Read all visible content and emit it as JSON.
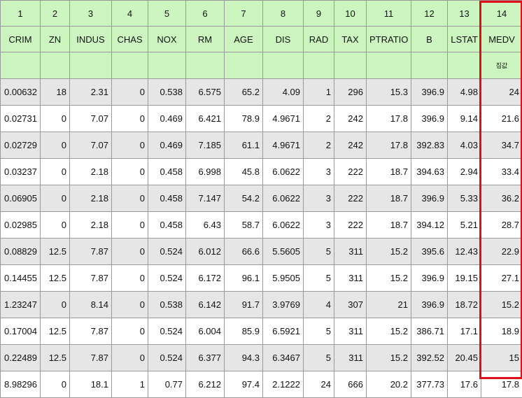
{
  "columns": {
    "numbers": [
      "1",
      "2",
      "3",
      "4",
      "5",
      "6",
      "7",
      "8",
      "9",
      "10",
      "11",
      "12",
      "13",
      "14"
    ],
    "names": [
      "CRIM",
      "ZN",
      "INDUS",
      "CHAS",
      "NOX",
      "RM",
      "AGE",
      "DIS",
      "RAD",
      "TAX",
      "PTRATIO",
      "B",
      "LSTAT",
      "MEDV"
    ],
    "target_note": "집값"
  },
  "rows": [
    [
      "0.00632",
      "18",
      "2.31",
      "0",
      "0.538",
      "6.575",
      "65.2",
      "4.09",
      "1",
      "296",
      "15.3",
      "396.9",
      "4.98",
      "24"
    ],
    [
      "0.02731",
      "0",
      "7.07",
      "0",
      "0.469",
      "6.421",
      "78.9",
      "4.9671",
      "2",
      "242",
      "17.8",
      "396.9",
      "9.14",
      "21.6"
    ],
    [
      "0.02729",
      "0",
      "7.07",
      "0",
      "0.469",
      "7.185",
      "61.1",
      "4.9671",
      "2",
      "242",
      "17.8",
      "392.83",
      "4.03",
      "34.7"
    ],
    [
      "0.03237",
      "0",
      "2.18",
      "0",
      "0.458",
      "6.998",
      "45.8",
      "6.0622",
      "3",
      "222",
      "18.7",
      "394.63",
      "2.94",
      "33.4"
    ],
    [
      "0.06905",
      "0",
      "2.18",
      "0",
      "0.458",
      "7.147",
      "54.2",
      "6.0622",
      "3",
      "222",
      "18.7",
      "396.9",
      "5.33",
      "36.2"
    ],
    [
      "0.02985",
      "0",
      "2.18",
      "0",
      "0.458",
      "6.43",
      "58.7",
      "6.0622",
      "3",
      "222",
      "18.7",
      "394.12",
      "5.21",
      "28.7"
    ],
    [
      "0.08829",
      "12.5",
      "7.87",
      "0",
      "0.524",
      "6.012",
      "66.6",
      "5.5605",
      "5",
      "311",
      "15.2",
      "395.6",
      "12.43",
      "22.9"
    ],
    [
      "0.14455",
      "12.5",
      "7.87",
      "0",
      "0.524",
      "6.172",
      "96.1",
      "5.9505",
      "5",
      "311",
      "15.2",
      "396.9",
      "19.15",
      "27.1"
    ],
    [
      "1.23247",
      "0",
      "8.14",
      "0",
      "0.538",
      "6.142",
      "91.7",
      "3.9769",
      "4",
      "307",
      "21",
      "396.9",
      "18.72",
      "15.2"
    ],
    [
      "0.17004",
      "12.5",
      "7.87",
      "0",
      "0.524",
      "6.004",
      "85.9",
      "6.5921",
      "5",
      "311",
      "15.2",
      "386.71",
      "17.1",
      "18.9"
    ],
    [
      "0.22489",
      "12.5",
      "7.87",
      "0",
      "0.524",
      "6.377",
      "94.3",
      "6.3467",
      "5",
      "311",
      "15.2",
      "392.52",
      "20.45",
      "15"
    ],
    [
      "8.98296",
      "0",
      "18.1",
      "1",
      "0.77",
      "6.212",
      "97.4",
      "2.1222",
      "24",
      "666",
      "20.2",
      "377.73",
      "17.6",
      "17.8"
    ]
  ],
  "colors": {
    "header_bg": "#ccf5c0",
    "stripe_bg": "#e6e6e6",
    "highlight_border": "#e0101a"
  }
}
